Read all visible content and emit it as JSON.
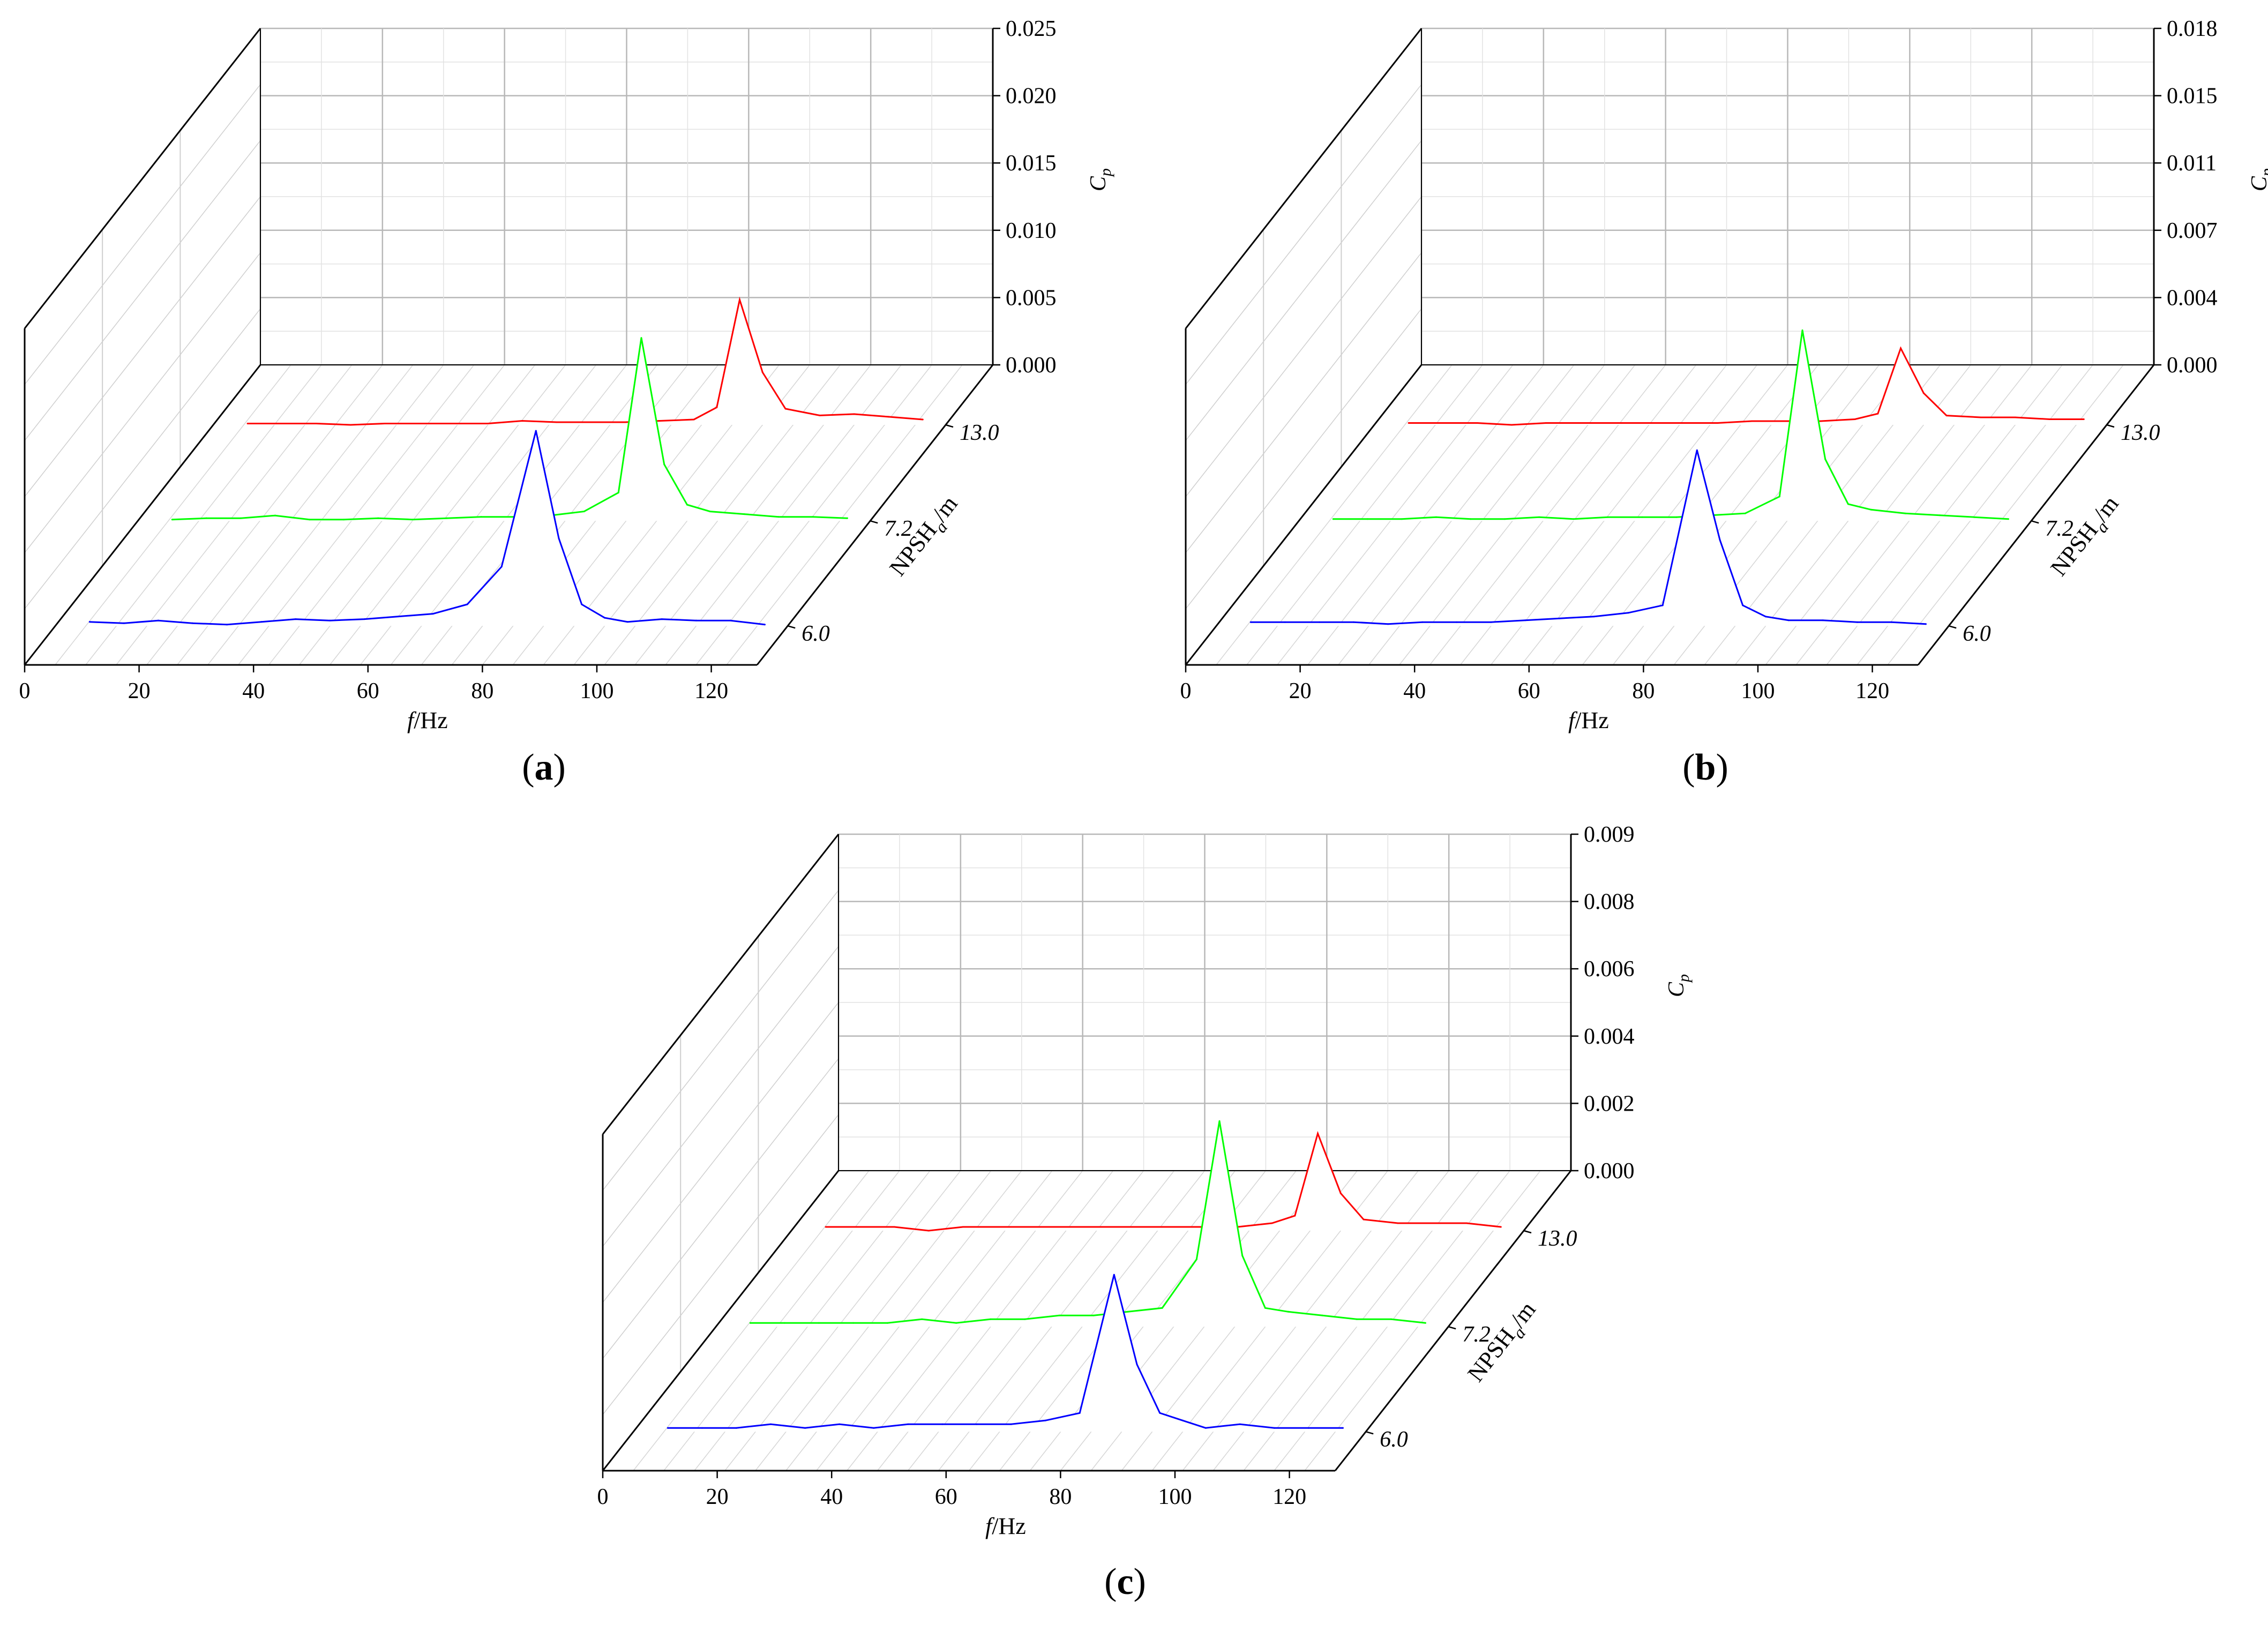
{
  "chart_data": [
    {
      "type": "line",
      "panel_label": "a",
      "xlabel": "f",
      "xlabel_unit": "/Hz",
      "ylabel": "NPSH",
      "ylabel_sub": "a",
      "ylabel_unit": "/m",
      "zlabel": "C",
      "zlabel_sub": "p",
      "x_ticks": [
        "0",
        "20",
        "40",
        "60",
        "80",
        "100",
        "120"
      ],
      "xlim": [
        0,
        128
      ],
      "z_ticks": [
        "0.000",
        "0.005",
        "0.010",
        "0.015",
        "0.020",
        "0.025"
      ],
      "zlim": [
        0,
        0.025
      ],
      "x": [
        6,
        12,
        18,
        24,
        30,
        36,
        42,
        48,
        54,
        60,
        66,
        72,
        78,
        84,
        88,
        92,
        96,
        100,
        106,
        112,
        118,
        124
      ],
      "series": [
        {
          "name": "13.0",
          "color": "#ff0000",
          "values": [
            0.0001,
            0.0001,
            0.0001,
            0.0,
            0.0001,
            0.0001,
            0.0001,
            0.0001,
            0.0003,
            0.0002,
            0.0002,
            0.0002,
            0.0003,
            0.0004,
            0.0013,
            0.0093,
            0.0039,
            0.0012,
            0.0007,
            0.0008,
            0.0006,
            0.0004
          ]
        },
        {
          "name": "7.2",
          "color": "#00ff00",
          "values": [
            0.0001,
            0.0002,
            0.0002,
            0.0004,
            0.0001,
            0.0001,
            0.0002,
            0.0001,
            0.0002,
            0.0003,
            0.0003,
            0.0004,
            0.0007,
            0.0021,
            0.0136,
            0.0042,
            0.0012,
            0.0007,
            0.0005,
            0.0003,
            0.0003,
            0.0002
          ]
        },
        {
          "name": "6.0",
          "color": "#0000ff",
          "values": [
            0.0003,
            0.0002,
            0.0004,
            0.0002,
            0.0001,
            0.0003,
            0.0005,
            0.0004,
            0.0005,
            0.0007,
            0.0009,
            0.0016,
            0.0044,
            0.0145,
            0.0065,
            0.0016,
            0.0006,
            0.0003,
            0.0005,
            0.0004,
            0.0004,
            0.0001
          ]
        }
      ]
    },
    {
      "type": "line",
      "panel_label": "b",
      "xlabel": "f",
      "xlabel_unit": "/Hz",
      "ylabel": "NPSH",
      "ylabel_sub": "a",
      "ylabel_unit": "/m",
      "zlabel": "C",
      "zlabel_sub": "p",
      "x_ticks": [
        "0",
        "20",
        "40",
        "60",
        "80",
        "100",
        "120"
      ],
      "xlim": [
        0,
        128
      ],
      "z_ticks": [
        "0.000",
        "0.004",
        "0.007",
        "0.011",
        "0.015",
        "0.018"
      ],
      "zlim": [
        0,
        0.018
      ],
      "x": [
        6,
        12,
        18,
        24,
        30,
        36,
        42,
        48,
        54,
        60,
        66,
        72,
        78,
        84,
        88,
        92,
        96,
        100,
        106,
        112,
        118,
        124
      ],
      "series": [
        {
          "name": "13.0",
          "color": "#ff0000",
          "values": [
            0.0001,
            0.0001,
            0.0001,
            0.0,
            0.0001,
            0.0001,
            0.0001,
            0.0001,
            0.0001,
            0.0001,
            0.0002,
            0.0002,
            0.0002,
            0.0003,
            0.0006,
            0.0041,
            0.0017,
            0.0005,
            0.0004,
            0.0004,
            0.0003,
            0.0003
          ]
        },
        {
          "name": "7.2",
          "color": "#00ff00",
          "values": [
            0.0001,
            0.0001,
            0.0001,
            0.0002,
            0.0001,
            0.0001,
            0.0002,
            0.0001,
            0.0002,
            0.0002,
            0.0002,
            0.0003,
            0.0004,
            0.0013,
            0.0102,
            0.0033,
            0.0009,
            0.0006,
            0.0004,
            0.0003,
            0.0002,
            0.0001
          ]
        },
        {
          "name": "6.0",
          "color": "#0000ff",
          "values": [
            0.0002,
            0.0002,
            0.0002,
            0.0002,
            0.0001,
            0.0002,
            0.0002,
            0.0002,
            0.0003,
            0.0004,
            0.0005,
            0.0007,
            0.0011,
            0.0094,
            0.0046,
            0.0011,
            0.0005,
            0.0003,
            0.0003,
            0.0002,
            0.0002,
            0.0001
          ]
        }
      ]
    },
    {
      "type": "line",
      "panel_label": "c",
      "xlabel": "f",
      "xlabel_unit": "/Hz",
      "ylabel": "NPSH",
      "ylabel_sub": "a",
      "ylabel_unit": "/m",
      "zlabel": "C",
      "zlabel_sub": "p",
      "x_ticks": [
        "0",
        "20",
        "40",
        "60",
        "80",
        "100",
        "120"
      ],
      "xlim": [
        0,
        128
      ],
      "z_ticks": [
        "0.000",
        "0.002",
        "0.004",
        "0.006",
        "0.008",
        "0.009"
      ],
      "zlim": [
        0,
        0.009
      ],
      "x": [
        6,
        12,
        18,
        24,
        30,
        36,
        42,
        48,
        54,
        60,
        66,
        72,
        78,
        84,
        88,
        92,
        96,
        100,
        106,
        112,
        118,
        124
      ],
      "series": [
        {
          "name": "13.0",
          "color": "#ff0000",
          "values": [
            0.0001,
            0.0001,
            0.0001,
            0.0,
            0.0001,
            0.0001,
            0.0001,
            0.0001,
            0.0001,
            0.0001,
            0.0001,
            0.0001,
            0.0001,
            0.0002,
            0.0004,
            0.0026,
            0.001,
            0.0003,
            0.0002,
            0.0002,
            0.0002,
            0.0001
          ]
        },
        {
          "name": "7.2",
          "color": "#00ff00",
          "values": [
            0.0001,
            0.0001,
            0.0001,
            0.0001,
            0.0001,
            0.0002,
            0.0001,
            0.0002,
            0.0002,
            0.0003,
            0.0003,
            0.0004,
            0.0005,
            0.0018,
            0.0055,
            0.0019,
            0.0005,
            0.0004,
            0.0003,
            0.0002,
            0.0002,
            0.0001
          ]
        },
        {
          "name": "6.0",
          "color": "#0000ff",
          "values": [
            0.0001,
            0.0001,
            0.0001,
            0.0002,
            0.0001,
            0.0002,
            0.0001,
            0.0002,
            0.0002,
            0.0002,
            0.0002,
            0.0003,
            0.0005,
            0.0042,
            0.0018,
            0.0005,
            0.0003,
            0.0001,
            0.0002,
            0.0001,
            0.0001,
            0.0001
          ]
        }
      ]
    }
  ]
}
